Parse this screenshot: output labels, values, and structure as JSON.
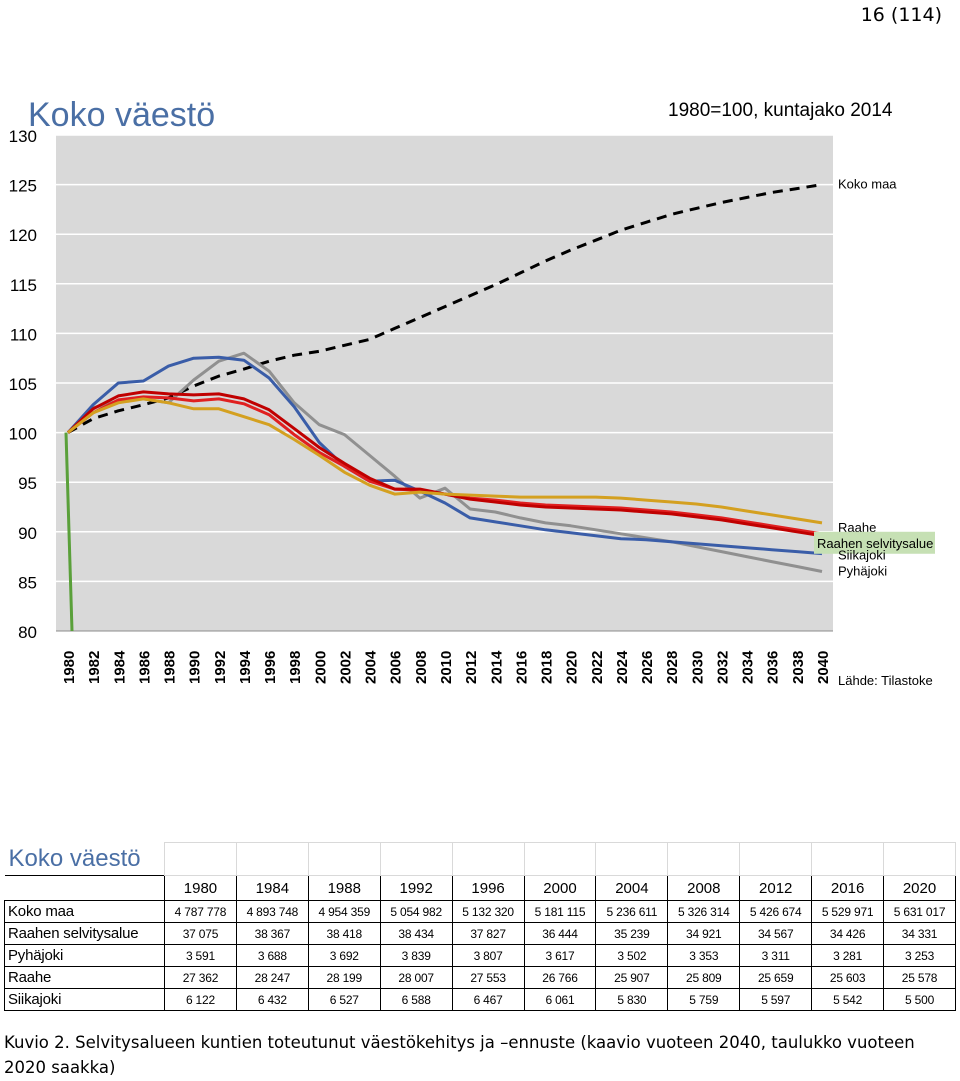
{
  "page_number": "16 (114)",
  "chart_data": {
    "type": "line",
    "title": "Koko väestö",
    "subtitle": "1980=100, kuntajako 2014",
    "source": "Lähde: Tilastoke",
    "ylim": [
      80,
      130
    ],
    "yticks": [
      80,
      85,
      90,
      95,
      100,
      105,
      110,
      115,
      120,
      125,
      130
    ],
    "xticks": [
      "1980",
      "1982",
      "1984",
      "1986",
      "1988",
      "1990",
      "1992",
      "1994",
      "1996",
      "1998",
      "2000",
      "2002",
      "2004",
      "2006",
      "2008",
      "2010",
      "2012",
      "2014",
      "2016",
      "2018",
      "2020",
      "2022",
      "2024",
      "2026",
      "2028",
      "2030",
      "2032",
      "2034",
      "2036",
      "2038",
      "2040"
    ],
    "grid": true,
    "colors": {
      "Koko maa": "#000000",
      "Raahe": "#e02020",
      "Raahen selvitysalue": "#c00000",
      "Siikajoki": "#3a5da8",
      "Pyhäjoki": "#909090",
      "other": "#d4a020",
      "axis-line": "#5aa03a"
    },
    "series": [
      {
        "name": "Koko maa",
        "style": "dashed",
        "color": "#000000",
        "x": [
          1980,
          1982,
          1984,
          1986,
          1988,
          1990,
          1992,
          1994,
          1996,
          1998,
          2000,
          2002,
          2004,
          2006,
          2008,
          2010,
          2012,
          2014,
          2016,
          2018,
          2020,
          2022,
          2024,
          2026,
          2028,
          2030,
          2032,
          2034,
          2036,
          2038,
          2040
        ],
        "y": [
          100,
          101.4,
          102.2,
          102.8,
          103.5,
          104.7,
          105.7,
          106.4,
          107.2,
          107.8,
          108.2,
          108.8,
          109.4,
          110.5,
          111.6,
          112.7,
          113.8,
          114.9,
          116.1,
          117.3,
          118.4,
          119.4,
          120.4,
          121.2,
          122.0,
          122.6,
          123.2,
          123.7,
          124.2,
          124.6,
          125.0
        ]
      },
      {
        "name": "Pyhäjoki",
        "color": "#909090",
        "x": [
          1980,
          1982,
          1984,
          1986,
          1988,
          1990,
          1992,
          1994,
          1996,
          1998,
          2000,
          2002,
          2004,
          2006,
          2008,
          2010,
          2012,
          2014,
          2016,
          2018,
          2020,
          2022,
          2024,
          2026,
          2028,
          2030,
          2032,
          2034,
          2036,
          2038,
          2040
        ],
        "y": [
          100,
          102.5,
          103.2,
          103.4,
          103.0,
          105.3,
          107.2,
          108.0,
          106.2,
          103.0,
          100.8,
          99.8,
          97.7,
          95.6,
          93.4,
          94.4,
          92.3,
          92.0,
          91.4,
          90.9,
          90.6,
          90.2,
          89.8,
          89.4,
          89.0,
          88.5,
          88.0,
          87.5,
          87.0,
          86.5,
          86.0
        ]
      },
      {
        "name": "Siikajoki",
        "color": "#3a5da8",
        "x": [
          1980,
          1982,
          1984,
          1986,
          1988,
          1990,
          1992,
          1994,
          1996,
          1998,
          2000,
          2002,
          2004,
          2006,
          2008,
          2010,
          2012,
          2014,
          2016,
          2018,
          2020,
          2022,
          2024,
          2026,
          2028,
          2030,
          2032,
          2034,
          2036,
          2038,
          2040
        ],
        "y": [
          100,
          102.8,
          105.0,
          105.2,
          106.7,
          107.5,
          107.6,
          107.3,
          105.5,
          102.6,
          99.0,
          96.6,
          95.1,
          95.2,
          94.1,
          92.9,
          91.4,
          91.0,
          90.6,
          90.2,
          89.9,
          89.6,
          89.3,
          89.2,
          89.0,
          88.8,
          88.6,
          88.4,
          88.2,
          88.0,
          87.8
        ]
      },
      {
        "name": "Raahe",
        "color": "#e02020",
        "x": [
          1980,
          1982,
          1984,
          1986,
          1988,
          1990,
          1992,
          1994,
          1996,
          1998,
          2000,
          2002,
          2004,
          2006,
          2008,
          2010,
          2012,
          2014,
          2016,
          2018,
          2020,
          2022,
          2024,
          2026,
          2028,
          2030,
          2032,
          2034,
          2036,
          2038,
          2040
        ],
        "y": [
          100,
          102.0,
          103.3,
          103.6,
          103.5,
          103.2,
          103.4,
          102.9,
          101.8,
          99.8,
          98.0,
          96.6,
          95.1,
          94.3,
          94.2,
          93.8,
          93.4,
          93.2,
          92.9,
          92.7,
          92.6,
          92.5,
          92.4,
          92.2,
          92.0,
          91.7,
          91.4,
          91.0,
          90.6,
          90.2,
          89.8
        ]
      },
      {
        "name": "Raahen selvitysalue",
        "color": "#c00000",
        "x": [
          1980,
          1982,
          1984,
          1986,
          1988,
          1990,
          1992,
          1994,
          1996,
          1998,
          2000,
          2002,
          2004,
          2006,
          2008,
          2010,
          2012,
          2014,
          2016,
          2018,
          2020,
          2022,
          2024,
          2026,
          2028,
          2030,
          2032,
          2034,
          2036,
          2038,
          2040
        ],
        "y": [
          100,
          102.4,
          103.7,
          104.1,
          103.9,
          103.8,
          103.9,
          103.4,
          102.3,
          100.4,
          98.5,
          96.9,
          95.4,
          94.3,
          94.3,
          93.8,
          93.3,
          93.0,
          92.7,
          92.5,
          92.4,
          92.3,
          92.2,
          92.0,
          91.8,
          91.5,
          91.2,
          90.8,
          90.4,
          90.0,
          89.6
        ]
      },
      {
        "name": "",
        "color": "#d4a020",
        "x": [
          1980,
          1982,
          1984,
          1986,
          1988,
          1990,
          1992,
          1994,
          1996,
          1998,
          2000,
          2002,
          2004,
          2006,
          2008,
          2010,
          2012,
          2014,
          2016,
          2018,
          2020,
          2022,
          2024,
          2026,
          2028,
          2030,
          2032,
          2034,
          2036,
          2038,
          2040
        ],
        "y": [
          100,
          102.0,
          103.0,
          103.4,
          103.0,
          102.4,
          102.4,
          101.6,
          100.8,
          99.3,
          97.7,
          96.0,
          94.7,
          93.8,
          94.0,
          93.8,
          93.7,
          93.6,
          93.5,
          93.5,
          93.5,
          93.5,
          93.4,
          93.2,
          93.0,
          92.8,
          92.5,
          92.1,
          91.7,
          91.3,
          90.9
        ]
      }
    ],
    "end_labels": [
      {
        "text": "Koko maa",
        "series": "Koko maa"
      },
      {
        "text": "Raahe",
        "series": "Raahe"
      },
      {
        "text": "Raahen selvitysalue",
        "series": "Raahen selvitysalue",
        "highlight": "#c6e0b4"
      },
      {
        "text": "Siikajoki",
        "series": "Siikajoki"
      },
      {
        "text": "Pyhäjoki",
        "series": "Pyhäjoki"
      }
    ]
  },
  "table": {
    "title": "Koko väestö",
    "years": [
      "1980",
      "1984",
      "1988",
      "1992",
      "1996",
      "2000",
      "2004",
      "2008",
      "2012",
      "2016",
      "2020"
    ],
    "rows": [
      {
        "label": "Koko maa",
        "values": [
          "4 787 778",
          "4 893 748",
          "4 954 359",
          "5 054 982",
          "5 132 320",
          "5 181 115",
          "5 236 611",
          "5 326 314",
          "5 426 674",
          "5 529 971",
          "5 631 017"
        ]
      },
      {
        "label": "Raahen selvitysalue",
        "values": [
          "37 075",
          "38 367",
          "38 418",
          "38 434",
          "37 827",
          "36 444",
          "35 239",
          "34 921",
          "34 567",
          "34 426",
          "34 331"
        ]
      },
      {
        "label": "Pyhäjoki",
        "values": [
          "3 591",
          "3 688",
          "3 692",
          "3 839",
          "3 807",
          "3 617",
          "3 502",
          "3 353",
          "3 311",
          "3 281",
          "3 253"
        ]
      },
      {
        "label": "Raahe",
        "values": [
          "27 362",
          "28 247",
          "28 199",
          "28 007",
          "27 553",
          "26 766",
          "25 907",
          "25 809",
          "25 659",
          "25 603",
          "25 578"
        ]
      },
      {
        "label": "Siikajoki",
        "values": [
          "6 122",
          "6 432",
          "6 527",
          "6 588",
          "6 467",
          "6 061",
          "5 830",
          "5 759",
          "5 597",
          "5 542",
          "5 500"
        ]
      }
    ]
  },
  "caption": "Kuvio 2. Selvitysalueen kuntien toteutunut väestökehitys ja –ennuste (kaavio vuoteen 2040, taulukko vuoteen 2020 saakka)"
}
